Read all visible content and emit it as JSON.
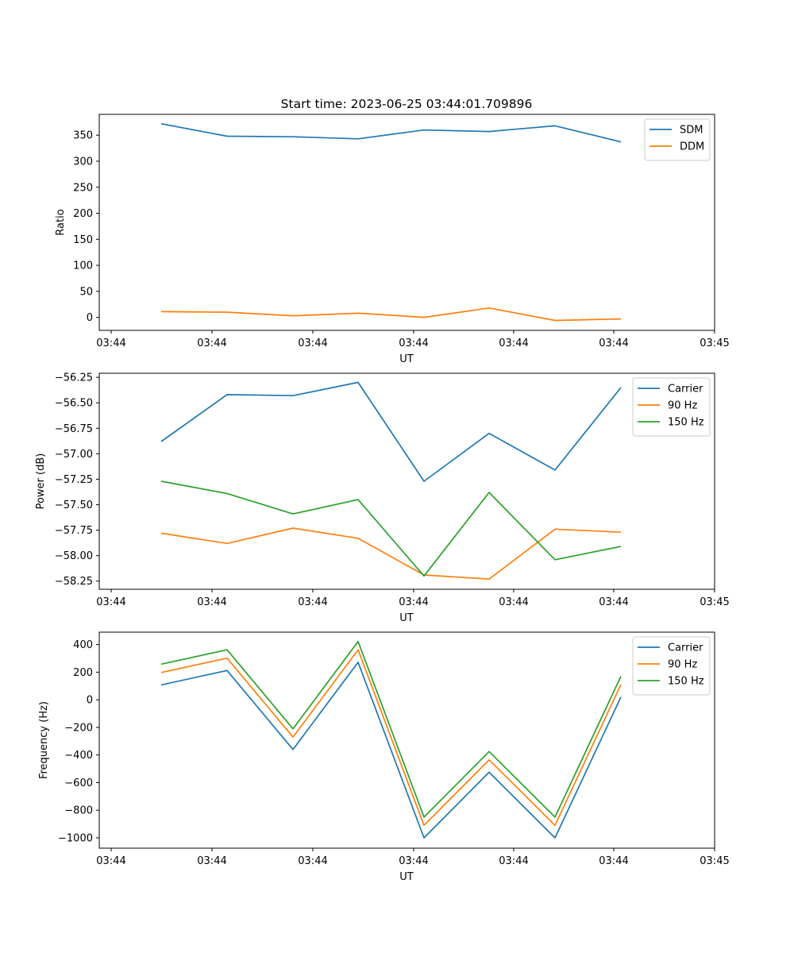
{
  "figure": {
    "title": "Start time: 2023-06-25 03:44:01.709896"
  },
  "chart_data": [
    {
      "type": "line",
      "title": "Start time: 2023-06-25 03:44:01.709896",
      "xlabel": "UT",
      "ylabel": "Ratio",
      "x_tick_labels": [
        "03:44",
        "03:44",
        "03:44",
        "03:44",
        "03:44",
        "03:44",
        "03:44"
      ],
      "y_ticks": [
        0,
        50,
        100,
        150,
        200,
        250,
        300,
        350
      ],
      "ylim": [
        -25,
        390
      ],
      "legend": "top-right",
      "grid": false,
      "series": [
        {
          "name": "SDM",
          "color": "#1f77b4",
          "values": [
            372,
            348,
            347,
            343,
            360,
            357,
            368,
            337
          ]
        },
        {
          "name": "DDM",
          "color": "#ff7f0e",
          "values": [
            11,
            10,
            3,
            8,
            0,
            18,
            -6,
            -3
          ]
        }
      ]
    },
    {
      "type": "line",
      "title": "",
      "xlabel": "UT",
      "ylabel": "Power (dB)",
      "x_tick_labels": [
        "03:44",
        "03:44",
        "03:44",
        "03:44",
        "03:44",
        "03:44",
        "03:44"
      ],
      "y_ticks": [
        -58.25,
        -58.0,
        -57.75,
        -57.5,
        -57.25,
        -57.0,
        -56.75,
        -56.5,
        -56.25
      ],
      "y_tick_labels": [
        "−58.25",
        "−58.00",
        "−57.75",
        "−57.50",
        "−57.25",
        "−57.00",
        "−56.75",
        "−56.50",
        "−56.25"
      ],
      "ylim": [
        -58.33,
        -56.21
      ],
      "legend": "top-right",
      "grid": false,
      "series": [
        {
          "name": "Carrier",
          "color": "#1f77b4",
          "values": [
            -56.88,
            -56.42,
            -56.43,
            -56.3,
            -57.27,
            -56.8,
            -57.16,
            -56.35
          ]
        },
        {
          "name": "90 Hz",
          "color": "#ff7f0e",
          "values": [
            -57.78,
            -57.88,
            -57.73,
            -57.83,
            -58.19,
            -58.23,
            -57.74,
            -57.77
          ]
        },
        {
          "name": "150 Hz",
          "color": "#2ca02c",
          "values": [
            -57.27,
            -57.39,
            -57.59,
            -57.45,
            -58.2,
            -57.38,
            -58.04,
            -57.91
          ]
        }
      ]
    },
    {
      "type": "line",
      "title": "",
      "xlabel": "UT",
      "ylabel": "Frequency (Hz)",
      "x_tick_labels": [
        "03:44",
        "03:44",
        "03:44",
        "03:44",
        "03:44",
        "03:44",
        "03:44"
      ],
      "y_ticks": [
        -1000,
        -800,
        -600,
        -400,
        -200,
        0,
        200,
        400
      ],
      "y_tick_labels": [
        "−1000",
        "−800",
        "−600",
        "−400",
        "−200",
        "0",
        "200",
        "400"
      ],
      "ylim": [
        -1075,
        490
      ],
      "legend": "top-right",
      "grid": false,
      "series": [
        {
          "name": "Carrier",
          "color": "#1f77b4",
          "values": [
            108,
            212,
            -360,
            272,
            -1000,
            -525,
            -1000,
            20
          ]
        },
        {
          "name": "90 Hz",
          "color": "#ff7f0e",
          "values": [
            198,
            302,
            -270,
            362,
            -910,
            -435,
            -910,
            110
          ]
        },
        {
          "name": "150 Hz",
          "color": "#2ca02c",
          "values": [
            258,
            362,
            -210,
            422,
            -850,
            -375,
            -850,
            170
          ]
        }
      ]
    }
  ],
  "last_x_tick_label": "03:45"
}
